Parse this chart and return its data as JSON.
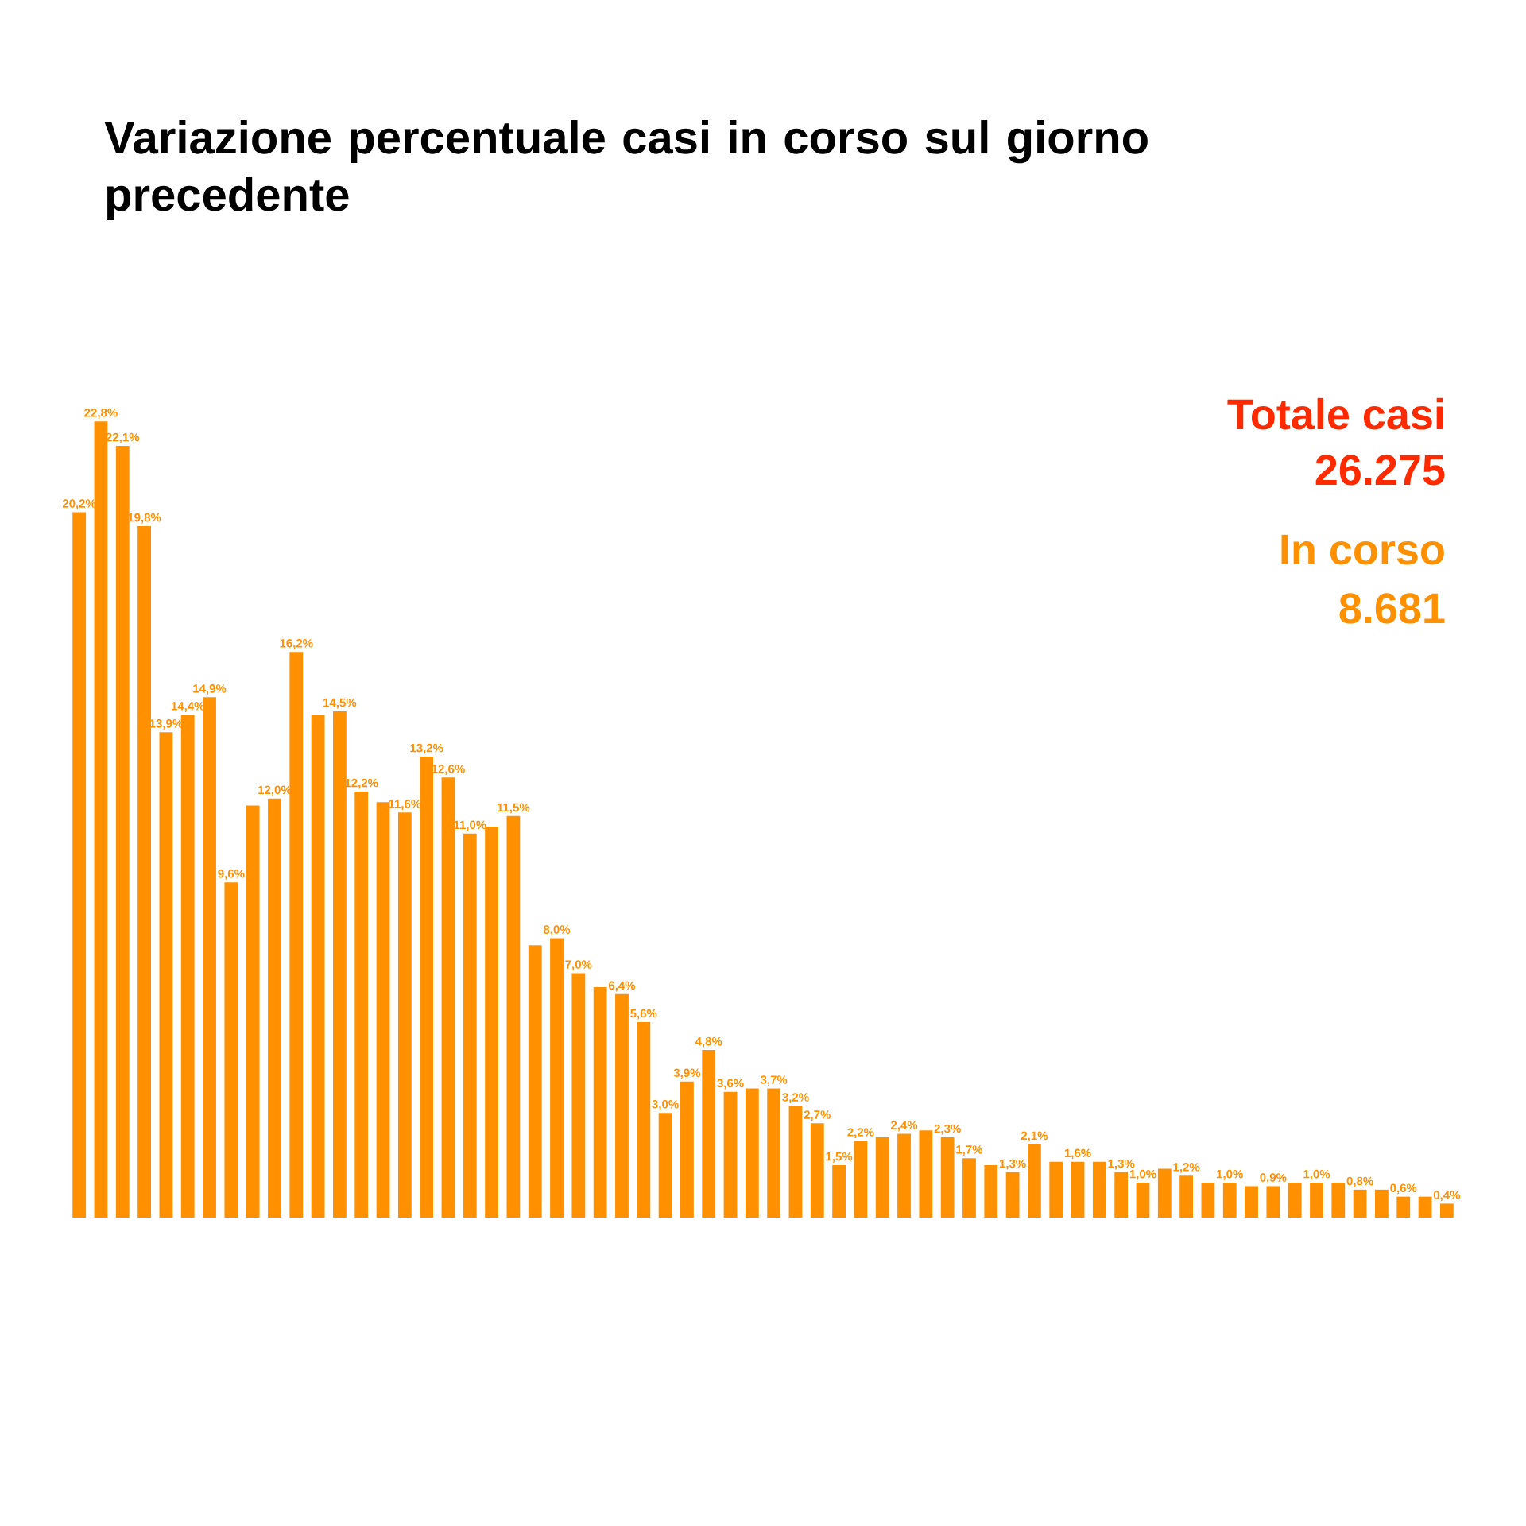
{
  "chart_data": {
    "type": "bar",
    "title": "Variazione percentuale casi in corso sul giorno precedente",
    "annotations": [
      "Totale casi",
      "26.275",
      "In corso",
      "8.681"
    ],
    "color": "#ff9000",
    "categories": [
      null,
      null,
      null,
      null,
      null,
      null,
      null,
      null,
      null,
      null,
      null,
      null,
      null,
      null,
      null,
      null,
      null,
      null,
      null,
      null,
      null,
      null,
      null,
      null,
      null,
      null,
      null,
      null,
      null,
      null,
      null,
      null,
      null,
      null,
      null,
      null,
      null,
      null,
      null,
      null,
      null,
      null,
      null,
      null,
      null,
      null,
      null,
      null,
      null,
      null,
      null,
      null,
      null,
      null,
      null,
      null,
      null,
      null,
      null,
      null,
      null,
      null,
      null,
      null
    ],
    "values": [
      20.2,
      22.8,
      22.1,
      19.8,
      13.9,
      14.4,
      14.9,
      9.6,
      11.8,
      12.0,
      16.2,
      14.4,
      14.5,
      12.2,
      11.9,
      11.6,
      13.2,
      12.6,
      11.0,
      11.2,
      11.5,
      7.8,
      8.0,
      7.0,
      6.6,
      6.4,
      5.6,
      3.0,
      3.9,
      4.8,
      3.6,
      3.7,
      3.7,
      3.2,
      2.7,
      1.5,
      2.2,
      2.3,
      2.4,
      2.5,
      2.3,
      1.7,
      1.5,
      1.3,
      2.1,
      1.6,
      1.6,
      1.6,
      1.3,
      1.0,
      1.4,
      1.2,
      1.0,
      1.0,
      0.9,
      0.9,
      1.0,
      1.0,
      1.0,
      0.8,
      0.8,
      0.6,
      0.6,
      0.4
    ],
    "value_labels": [
      "20,2%",
      "22,8%",
      "22,1%",
      "19,8%",
      "13,9%",
      "14,4%",
      "14,9%",
      "9,6%",
      null,
      "12,0%",
      "16,2%",
      null,
      "14,5%",
      "12,2%",
      null,
      "11,6%",
      "13,2%",
      "12,6%",
      "11,0%",
      null,
      "11,5%",
      null,
      "8,0%",
      "7,0%",
      null,
      "6,4%",
      "5,6%",
      "3,0%",
      "3,9%",
      "4,8%",
      "3,6%",
      null,
      "3,7%",
      "3,2%",
      "2,7%",
      "1,5%",
      "2,2%",
      null,
      "2,4%",
      null,
      "2,3%",
      "1,7%",
      null,
      "1,3%",
      "2,1%",
      null,
      "1,6%",
      null,
      "1,3%",
      "1,0%",
      null,
      "1,2%",
      null,
      "1,0%",
      null,
      "0,9%",
      null,
      "1,0%",
      null,
      "0,8%",
      null,
      "0,6%",
      null,
      "0,4%"
    ]
  }
}
